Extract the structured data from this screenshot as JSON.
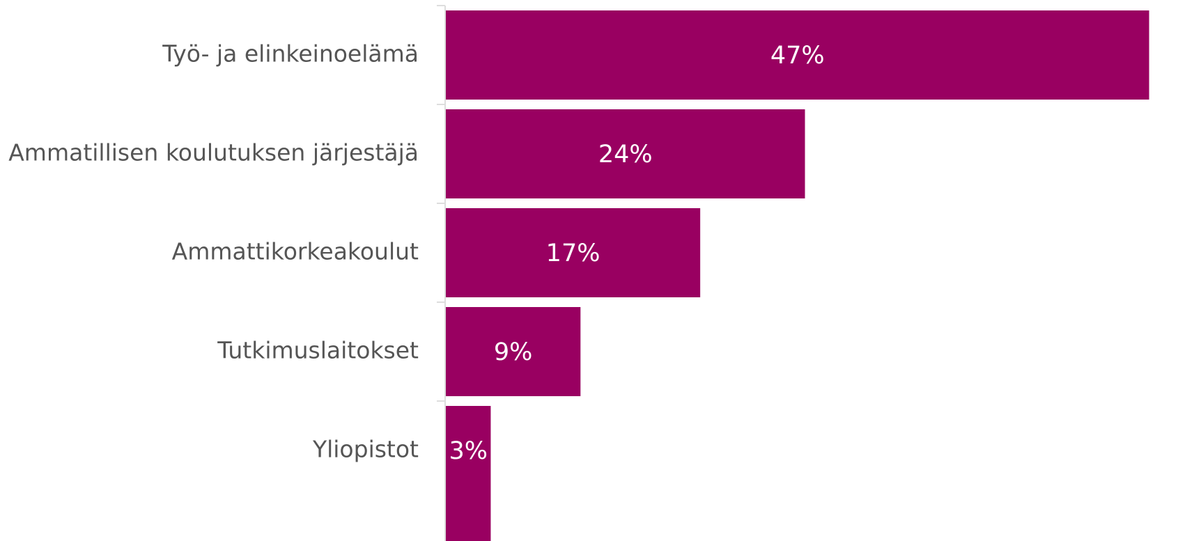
{
  "chart_data": {
    "type": "bar",
    "orientation": "horizontal",
    "categories": [
      "Työ- ja elinkeinoelämä",
      "Ammatillisen koulutuksen järjestäjä",
      "Ammattikorkeakoulut",
      "Tutkimuslaitokset",
      "Yliopistot"
    ],
    "values": [
      47,
      24,
      17,
      9,
      3
    ],
    "value_labels": [
      "47%",
      "24%",
      "17%",
      "9%",
      "3%"
    ],
    "color": "#990061",
    "xlim": [
      0,
      50
    ]
  }
}
